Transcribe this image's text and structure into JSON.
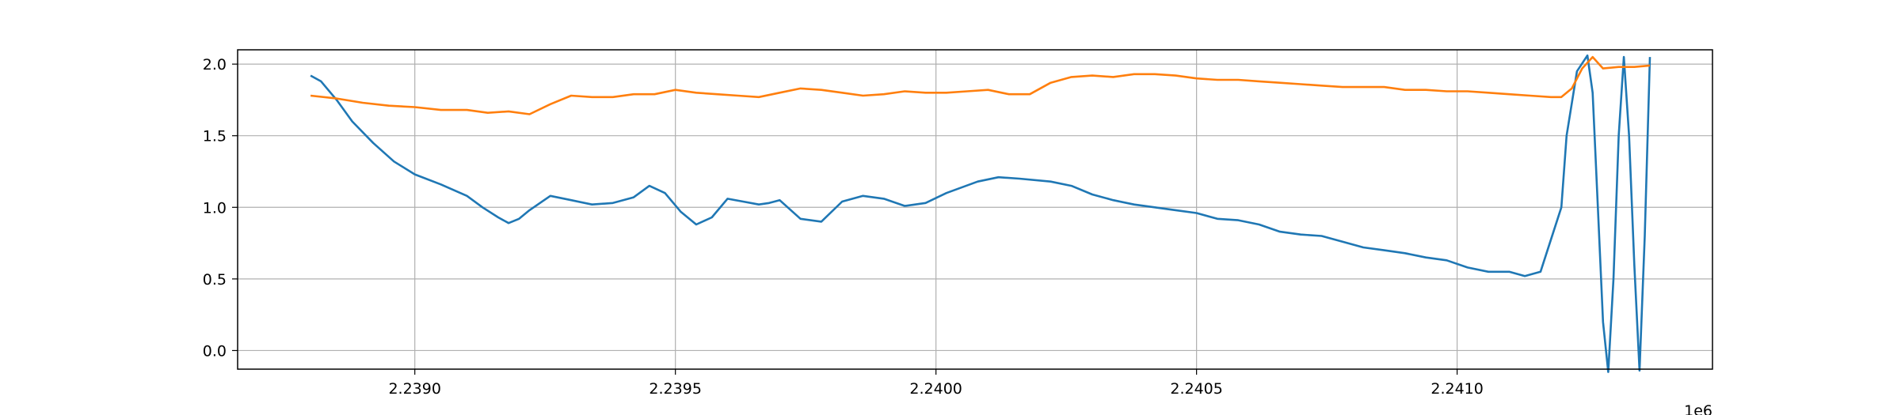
{
  "chart_data": {
    "type": "line",
    "title": "",
    "xlabel": "",
    "ylabel": "",
    "x_offset_label": "1e6",
    "xlim": [
      2.23866,
      2.24149
    ],
    "ylim": [
      -0.13,
      2.1
    ],
    "x_ticks": [
      2.239,
      2.2395,
      2.24,
      2.2405,
      2.241
    ],
    "x_tick_labels": [
      "2.2390",
      "2.2395",
      "2.2400",
      "2.2405",
      "2.2410"
    ],
    "y_ticks": [
      0.0,
      0.5,
      1.0,
      1.5,
      2.0
    ],
    "y_tick_labels": [
      "0.0",
      "0.5",
      "1.0",
      "1.5",
      "2.0"
    ],
    "grid": true,
    "series": [
      {
        "color": "#1f77b4",
        "x": [
          2.2388,
          2.23882,
          2.23885,
          2.23888,
          2.23892,
          2.23896,
          2.239,
          2.23905,
          2.2391,
          2.23913,
          2.23916,
          2.23918,
          2.2392,
          2.23922,
          2.23926,
          2.2393,
          2.23934,
          2.23938,
          2.23942,
          2.23945,
          2.23948,
          2.23951,
          2.23954,
          2.23957,
          2.2396,
          2.23963,
          2.23966,
          2.23968,
          2.2397,
          2.23974,
          2.23978,
          2.23982,
          2.23986,
          2.2399,
          2.23994,
          2.23998,
          2.24002,
          2.24008,
          2.24012,
          2.24016,
          2.24022,
          2.24026,
          2.2403,
          2.24034,
          2.24038,
          2.24042,
          2.24046,
          2.2405,
          2.24054,
          2.24058,
          2.24062,
          2.24066,
          2.2407,
          2.24074,
          2.24078,
          2.24082,
          2.24086,
          2.2409,
          2.24094,
          2.24098,
          2.24102,
          2.24106,
          2.2411,
          2.24113,
          2.24116,
          2.2412,
          2.24121,
          2.24123,
          2.24125,
          2.24126,
          2.24127,
          2.24128,
          2.24129,
          2.2413,
          2.24131,
          2.24132,
          2.24133,
          2.24134,
          2.24135,
          2.24136,
          2.24137
        ],
        "y": [
          1.92,
          1.88,
          1.75,
          1.6,
          1.45,
          1.32,
          1.23,
          1.16,
          1.08,
          1.0,
          0.93,
          0.89,
          0.92,
          0.98,
          1.08,
          1.05,
          1.02,
          1.03,
          1.07,
          1.15,
          1.1,
          0.97,
          0.88,
          0.93,
          1.06,
          1.04,
          1.02,
          1.03,
          1.05,
          0.92,
          0.9,
          1.04,
          1.08,
          1.06,
          1.01,
          1.03,
          1.1,
          1.18,
          1.21,
          1.2,
          1.18,
          1.15,
          1.09,
          1.05,
          1.02,
          1.0,
          0.98,
          0.96,
          0.92,
          0.91,
          0.88,
          0.83,
          0.81,
          0.8,
          0.76,
          0.72,
          0.7,
          0.68,
          0.65,
          0.63,
          0.58,
          0.55,
          0.55,
          0.52,
          0.55,
          1.0,
          1.5,
          1.95,
          2.06,
          1.8,
          1.0,
          0.2,
          -0.15,
          0.5,
          1.5,
          2.05,
          1.5,
          0.6,
          -0.14,
          0.8,
          2.05
        ]
      },
      {
        "color": "#ff7f0e",
        "x": [
          2.2388,
          2.23885,
          2.2389,
          2.23895,
          2.239,
          2.23905,
          2.2391,
          2.23914,
          2.23918,
          2.23922,
          2.23926,
          2.2393,
          2.23934,
          2.23938,
          2.23942,
          2.23946,
          2.2395,
          2.23954,
          2.23958,
          2.23962,
          2.23966,
          2.2397,
          2.23974,
          2.23978,
          2.23982,
          2.23986,
          2.2399,
          2.23994,
          2.23998,
          2.24002,
          2.24006,
          2.2401,
          2.24014,
          2.24018,
          2.24022,
          2.24026,
          2.2403,
          2.24034,
          2.24038,
          2.24042,
          2.24046,
          2.2405,
          2.24054,
          2.24058,
          2.24062,
          2.24066,
          2.2407,
          2.24074,
          2.24078,
          2.24082,
          2.24086,
          2.2409,
          2.24094,
          2.24098,
          2.24102,
          2.24106,
          2.2411,
          2.24114,
          2.24118,
          2.2412,
          2.24122,
          2.24124,
          2.24126,
          2.24128,
          2.24131,
          2.24134,
          2.24137
        ],
        "y": [
          1.78,
          1.76,
          1.73,
          1.71,
          1.7,
          1.68,
          1.68,
          1.66,
          1.67,
          1.65,
          1.72,
          1.78,
          1.77,
          1.77,
          1.79,
          1.79,
          1.82,
          1.8,
          1.79,
          1.78,
          1.77,
          1.8,
          1.83,
          1.82,
          1.8,
          1.78,
          1.79,
          1.81,
          1.8,
          1.8,
          1.81,
          1.82,
          1.79,
          1.79,
          1.87,
          1.91,
          1.92,
          1.91,
          1.93,
          1.93,
          1.92,
          1.9,
          1.89,
          1.89,
          1.88,
          1.87,
          1.86,
          1.85,
          1.84,
          1.84,
          1.84,
          1.82,
          1.82,
          1.81,
          1.81,
          1.8,
          1.79,
          1.78,
          1.77,
          1.77,
          1.83,
          1.97,
          2.05,
          1.97,
          1.98,
          1.98,
          1.99
        ]
      }
    ]
  }
}
